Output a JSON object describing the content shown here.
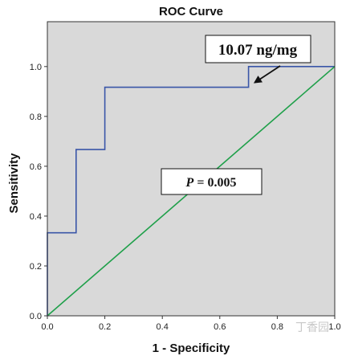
{
  "chart_data": {
    "type": "line",
    "title": "ROC Curve",
    "xlabel": "1 - Specificity",
    "ylabel": "Sensitivity",
    "xlim": [
      0,
      1
    ],
    "ylim": [
      0,
      1.18
    ],
    "x_ticks": [
      "0.0",
      "0.2",
      "0.4",
      "0.6",
      "0.8",
      "1.0"
    ],
    "y_ticks": [
      "0.0",
      "0.2",
      "0.4",
      "0.6",
      "0.8",
      "1.0"
    ],
    "grid": false,
    "series": [
      {
        "color": "#3a56a8",
        "x": [
          0,
          0,
          0.1,
          0.1,
          0.2,
          0.2,
          0.7,
          0.7,
          1.0
        ],
        "y": [
          0,
          0.333,
          0.333,
          0.667,
          0.667,
          0.917,
          0.917,
          1.0,
          1.0
        ]
      },
      {
        "color": "#1fa04a",
        "x": [
          0,
          1
        ],
        "y": [
          0,
          1
        ]
      }
    ],
    "annotations": [
      {
        "text": "10.07 ng/mg",
        "arrow_to": [
          0.7,
          0.917
        ]
      },
      {
        "text_italic": "P",
        "text": " = 0.005"
      }
    ],
    "plot_background": "#d9d9d9"
  },
  "watermark": "丁香园"
}
